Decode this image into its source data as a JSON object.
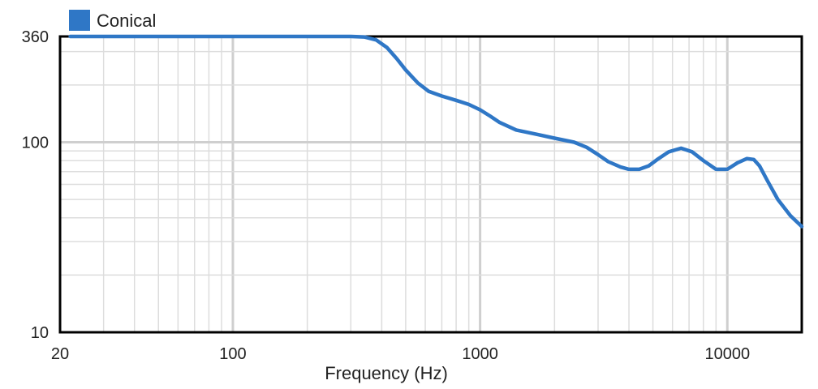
{
  "chart_data": {
    "type": "line",
    "xlabel": "Frequency (Hz)",
    "ylabel": "",
    "xscale": "log",
    "yscale": "log",
    "xlim": [
      20,
      20000
    ],
    "ylim": [
      10,
      360
    ],
    "x_ticks": [
      20,
      100,
      1000,
      10000
    ],
    "x_tick_labels": [
      "20",
      "100",
      "1000",
      "10000"
    ],
    "y_ticks": [
      10,
      100,
      360
    ],
    "y_tick_labels": [
      "10",
      "100",
      "360"
    ],
    "grid": true,
    "legend_position": "top-left",
    "series": [
      {
        "name": "Conical",
        "color": "#2f77c6",
        "x": [
          22,
          50,
          100,
          200,
          300,
          340,
          380,
          420,
          460,
          500,
          560,
          620,
          700,
          800,
          900,
          1000,
          1100,
          1200,
          1400,
          1700,
          2000,
          2400,
          2700,
          3000,
          3300,
          3700,
          4000,
          4400,
          4800,
          5200,
          5800,
          6500,
          7200,
          8000,
          9000,
          10000,
          11000,
          12000,
          12800,
          13500,
          14500,
          16000,
          18000,
          20000
        ],
        "y": [
          360,
          360,
          360,
          360,
          360,
          358,
          345,
          315,
          275,
          240,
          205,
          185,
          175,
          166,
          158,
          148,
          137,
          127,
          116,
          110,
          105,
          100,
          94,
          86,
          79,
          74,
          72,
          72,
          75,
          81,
          89,
          93,
          89,
          80,
          72,
          72,
          78,
          82,
          81,
          75,
          63,
          50,
          41,
          36
        ]
      }
    ]
  }
}
